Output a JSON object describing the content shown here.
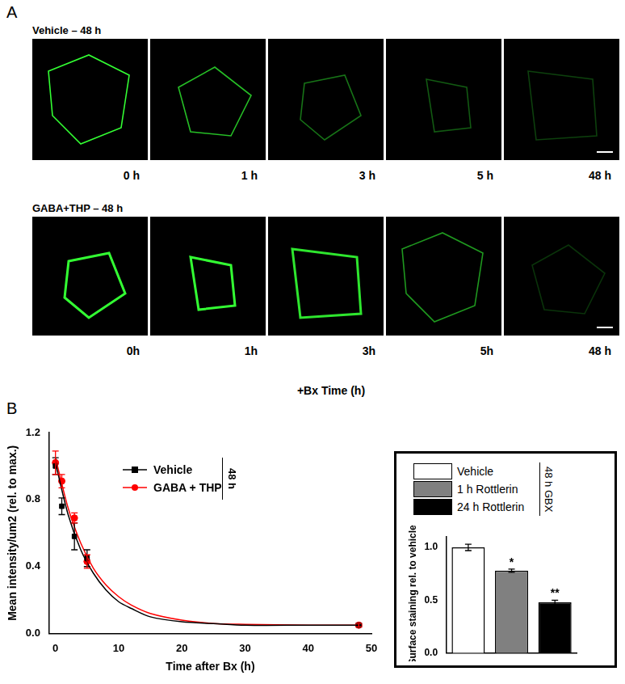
{
  "panel_A": {
    "label": "A",
    "rows": [
      {
        "title": "Vehicle – 48 h",
        "times": [
          "0 h",
          "1 h",
          "3 h",
          "5 h",
          "48 h"
        ]
      },
      {
        "title": "GABA+THP – 48 h",
        "times": [
          "0h",
          "1h",
          "3h",
          "5h",
          "48 h"
        ]
      }
    ],
    "x_title": "+Bx Time (h)"
  },
  "panel_B": {
    "label": "B"
  },
  "chart_data": [
    {
      "type": "line",
      "x_label": "Time after Bx (h)",
      "y_label": "Mean intensity/um2 (rel. to max.)",
      "xlim": [
        -1,
        50
      ],
      "xticks": [
        0,
        10,
        20,
        30,
        40,
        50
      ],
      "ylim": [
        0,
        1.2
      ],
      "yticks": [
        {
          "value": 0,
          "label": "0.0"
        },
        0.4,
        0.8,
        1.2
      ],
      "grid": false,
      "legend": "top",
      "annotation": "48 h",
      "series": [
        {
          "name": "Vehicle",
          "color": "#000000",
          "marker": "square",
          "x": [
            0,
            1,
            3,
            5,
            48
          ],
          "values": [
            1.0,
            0.76,
            0.58,
            0.45,
            0.05
          ],
          "errors": [
            0.05,
            0.05,
            0.08,
            0.05,
            0.01
          ],
          "fit": {
            "x": [
              0,
              2,
              4,
              6,
              8,
              10,
              12,
              15,
              20,
              25,
              30,
              40,
              48
            ],
            "values": [
              1.02,
              0.71,
              0.5,
              0.36,
              0.26,
              0.19,
              0.15,
              0.1,
              0.07,
              0.06,
              0.05,
              0.05,
              0.05
            ]
          }
        },
        {
          "name": "GABA + THP",
          "color": "#ff0000",
          "marker": "circle",
          "x": [
            0,
            1,
            3,
            5,
            48
          ],
          "values": [
            1.02,
            0.91,
            0.69,
            0.43,
            0.05
          ],
          "errors": [
            0.07,
            0.04,
            0.03,
            0.04,
            0.01
          ],
          "fit": {
            "x": [
              0,
              2,
              4,
              6,
              8,
              10,
              12,
              15,
              20,
              25,
              30,
              40,
              48
            ],
            "values": [
              1.05,
              0.75,
              0.54,
              0.39,
              0.29,
              0.22,
              0.17,
              0.12,
              0.08,
              0.06,
              0.055,
              0.05,
              0.05
            ]
          }
        }
      ]
    },
    {
      "type": "bar",
      "y_label": "Surface staining rel. to vehicle",
      "categories": [
        "Vehicle",
        "1 h Rottlerin",
        "24 h Rottlerin"
      ],
      "values": [
        1.0,
        0.78,
        0.48
      ],
      "errors": [
        0.03,
        0.015,
        0.02
      ],
      "significance": [
        null,
        "*",
        "**"
      ],
      "colors": [
        "#ffffff",
        "#808080",
        "#000000"
      ],
      "ylim": [
        0,
        1.1
      ],
      "yticks": [
        {
          "value": 0,
          "label": "0.0"
        },
        0.5,
        {
          "value": 1,
          "label": "1.0"
        }
      ],
      "grid": false,
      "legend": "top",
      "annotation": "48 h GBX",
      "tick_labels": "y"
    }
  ]
}
